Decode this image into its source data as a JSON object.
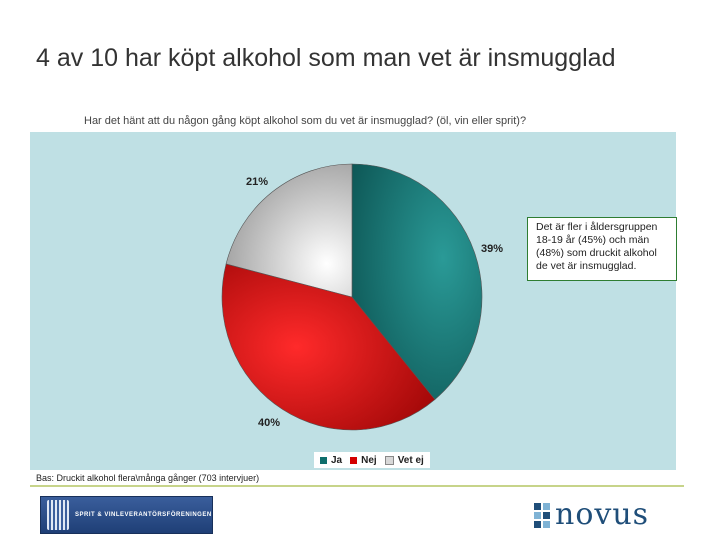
{
  "slide": {
    "title": "4 av 10 har köpt alkohol som man vet är insmugglad",
    "question": "Har det hänt att du någon gång köpt alkohol som du vet är insmugglad? (öl, vin eller sprit)?",
    "base_note": "Bas: Druckit alkohol flera\\många gånger (703 intervjuer)",
    "callout": "Det är fler i åldersgruppen 18-19 år (45%) och män (48%) som druckit alkohol de vet är insmugglad."
  },
  "chart_data": {
    "type": "pie",
    "title": "",
    "categories": [
      "Ja",
      "Nej",
      "Vet ej"
    ],
    "values": [
      39,
      40,
      21
    ],
    "labels": [
      "39%",
      "40%",
      "21%"
    ],
    "colors": [
      "#0e6e6c",
      "#d40000",
      "#d8d8d8"
    ],
    "legend_position": "bottom"
  },
  "logos": {
    "sponsor": "SPRIT & VINLEVERANTÖRSFÖRENINGEN",
    "novus": "novus"
  }
}
